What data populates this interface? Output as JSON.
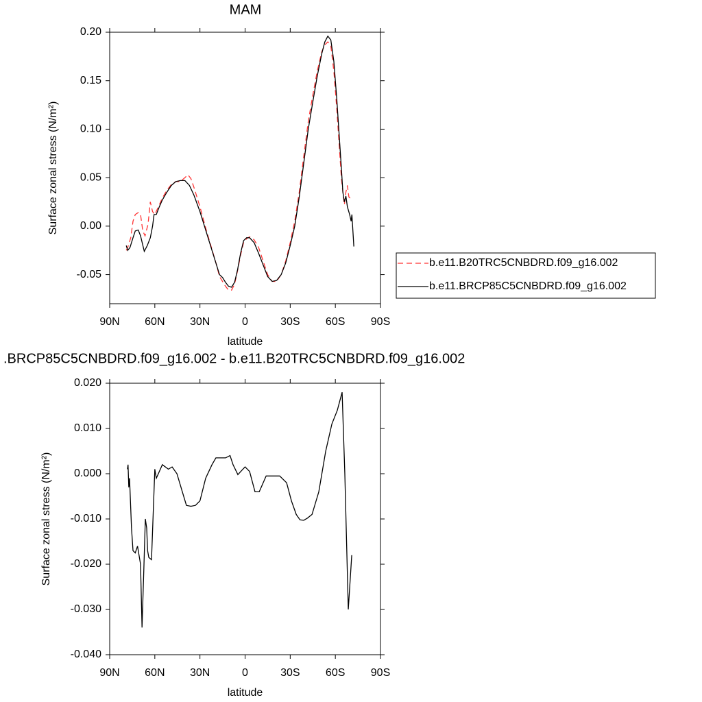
{
  "chart_data": [
    {
      "type": "line",
      "title": "MAM",
      "xlabel": "latitude",
      "ylabel": "Surface zonal stress (N/m²)",
      "xlim": [
        90,
        -90
      ],
      "xticks": [
        {
          "value": 90,
          "label": "90N"
        },
        {
          "value": 60,
          "label": "60N"
        },
        {
          "value": 30,
          "label": "30N"
        },
        0,
        {
          "value": -30,
          "label": "30S"
        },
        {
          "value": -60,
          "label": "60S"
        },
        {
          "value": -90,
          "label": "90S"
        }
      ],
      "ylim": [
        -0.08,
        0.2
      ],
      "yticks": [
        {
          "value": -0.05,
          "label": "-0.05"
        },
        {
          "value": 0,
          "label": "0.00"
        },
        {
          "value": 0.05,
          "label": "0.05"
        },
        {
          "value": 0.1,
          "label": "0.10"
        },
        {
          "value": 0.15,
          "label": "0.15"
        },
        {
          "value": 0.2,
          "label": "0.20"
        }
      ],
      "legend": "right",
      "series": [
        {
          "name": "b.e11.B20TRC5CNBDRD.f09_g16.002",
          "color": "#ff3333",
          "linestyle": "dashed",
          "x": [
            79,
            78,
            76,
            74.5,
            73,
            71,
            69.5,
            68,
            66.5,
            64.5,
            63,
            61.5,
            60,
            57,
            55,
            52,
            49,
            46,
            43,
            40,
            38,
            36,
            34,
            30,
            26,
            22,
            19,
            17,
            15,
            13,
            11,
            9,
            7,
            5,
            3,
            1,
            -1,
            -3,
            -6,
            -9,
            -12,
            -15,
            -18,
            -21,
            -24,
            -27,
            -30,
            -33,
            -36,
            -39,
            -42,
            -45,
            -48,
            -51,
            -53,
            -55,
            -57,
            -59,
            -61,
            -62.5,
            -64,
            -65,
            -66,
            -67,
            -68,
            -69,
            -70.5
          ],
          "values": [
            -0.025,
            -0.022,
            -0.012,
            0.005,
            0.012,
            0.014,
            0.012,
            -0.005,
            -0.01,
            0.002,
            0.025,
            0.015,
            0.012,
            0.022,
            0.029,
            0.037,
            0.043,
            0.046,
            0.046,
            0.05,
            0.053,
            0.049,
            0.04,
            0.02,
            -0.003,
            -0.024,
            -0.04,
            -0.052,
            -0.057,
            -0.062,
            -0.066,
            -0.066,
            -0.06,
            -0.046,
            -0.03,
            -0.017,
            -0.013,
            -0.011,
            -0.014,
            -0.022,
            -0.036,
            -0.05,
            -0.057,
            -0.057,
            -0.05,
            -0.036,
            -0.017,
            0.005,
            0.035,
            0.072,
            0.108,
            0.135,
            0.16,
            0.18,
            0.187,
            0.19,
            0.186,
            0.16,
            0.12,
            0.085,
            0.05,
            0.035,
            0.022,
            0.035,
            0.042,
            0.03,
            0.028
          ]
        },
        {
          "name": "b.e11.BRCP85C5CNBDRD.f09_g16.002",
          "color": "#000000",
          "linestyle": "solid",
          "x": [
            79,
            78,
            76.5,
            74.5,
            73,
            71,
            69.5,
            67,
            65,
            63,
            61.5,
            60.5,
            59,
            57,
            55,
            52,
            49,
            46,
            43,
            40,
            37,
            34,
            30,
            26,
            22,
            19,
            17,
            15,
            13,
            11,
            9,
            7,
            5,
            3,
            1,
            -1,
            -3,
            -6,
            -9,
            -12,
            -15,
            -18,
            -21,
            -24,
            -27,
            -30,
            -33,
            -36,
            -39,
            -42,
            -45,
            -48,
            -51,
            -53,
            -55,
            -57,
            -59,
            -61,
            -62.5,
            -64,
            -65,
            -66,
            -67,
            -68,
            -69.5,
            -70.5,
            -71,
            -72.3
          ],
          "values": [
            -0.02,
            -0.025,
            -0.022,
            -0.012,
            -0.005,
            -0.004,
            -0.01,
            -0.026,
            -0.02,
            -0.012,
            0.0,
            0.012,
            0.012,
            0.02,
            0.027,
            0.035,
            0.042,
            0.046,
            0.047,
            0.047,
            0.042,
            0.032,
            0.015,
            -0.005,
            -0.025,
            -0.04,
            -0.05,
            -0.053,
            -0.058,
            -0.062,
            -0.063,
            -0.058,
            -0.045,
            -0.028,
            -0.015,
            -0.012,
            -0.012,
            -0.017,
            -0.028,
            -0.04,
            -0.052,
            -0.057,
            -0.056,
            -0.05,
            -0.038,
            -0.02,
            0.0,
            0.03,
            0.065,
            0.1,
            0.128,
            0.155,
            0.178,
            0.19,
            0.196,
            0.192,
            0.17,
            0.13,
            0.095,
            0.06,
            0.035,
            0.025,
            0.031,
            0.02,
            0.012,
            0.005,
            0.012,
            -0.021
          ]
        }
      ]
    },
    {
      "type": "line",
      "title": ".BRCP85C5CNBDRD.f09_g16.002 - b.e11.B20TRC5CNBDRD.f09_g16.002",
      "xlabel": "latitude",
      "ylabel": "Surface zonal stress (N/m²)",
      "xlim": [
        90,
        -90
      ],
      "xticks": [
        {
          "value": 90,
          "label": "90N"
        },
        {
          "value": 60,
          "label": "60N"
        },
        {
          "value": 30,
          "label": "30N"
        },
        0,
        {
          "value": -30,
          "label": "30S"
        },
        {
          "value": -60,
          "label": "60S"
        },
        {
          "value": -90,
          "label": "90S"
        }
      ],
      "ylim": [
        -0.04,
        0.02
      ],
      "yticks": [
        {
          "value": -0.04,
          "label": "-0.040"
        },
        {
          "value": -0.03,
          "label": "-0.030"
        },
        {
          "value": -0.02,
          "label": "-0.020"
        },
        {
          "value": -0.01,
          "label": "-0.010"
        },
        {
          "value": 0,
          "label": "0.000"
        },
        {
          "value": 0.01,
          "label": "0.010"
        },
        {
          "value": 0.02,
          "label": "0.020"
        }
      ],
      "series": [
        {
          "color": "#000000",
          "linestyle": "solid",
          "x": [
            78.2,
            77.8,
            77.3,
            76.8,
            75.5,
            74.5,
            73,
            71.5,
            69.5,
            68.5,
            67.2,
            66.3,
            65.4,
            64.8,
            64,
            62.2,
            60,
            59,
            55,
            51,
            48.5,
            45.3,
            41.7,
            39,
            36,
            33,
            30,
            26.2,
            22,
            19.4,
            16,
            13,
            10,
            8,
            4.8,
            2,
            0,
            -3,
            -6.6,
            -9.4,
            -14,
            -23,
            -27.6,
            -30.8,
            -34,
            -36.5,
            -39,
            -41.5,
            -44.5,
            -49,
            -53.6,
            -57.7,
            -61.3,
            -64.5,
            -66.3,
            -68.6,
            -70.9
          ],
          "values": [
            0.001,
            0.002,
            -0.003,
            -0.001,
            -0.012,
            -0.017,
            -0.0175,
            -0.016,
            -0.02,
            -0.034,
            -0.02,
            -0.01,
            -0.012,
            -0.017,
            -0.0185,
            -0.019,
            0.001,
            -0.001,
            0.002,
            0.001,
            0.0015,
            0.0,
            -0.004,
            -0.007,
            -0.0072,
            -0.007,
            -0.006,
            -0.001,
            0.002,
            0.0035,
            0.0035,
            0.0035,
            0.004,
            0.002,
            -0.0002,
            0.0008,
            0.0015,
            0.0005,
            -0.004,
            -0.004,
            -0.0005,
            -0.0005,
            -0.002,
            -0.006,
            -0.009,
            -0.0102,
            -0.0103,
            -0.0098,
            -0.009,
            -0.004,
            0.005,
            0.011,
            0.014,
            0.018,
            0.0,
            -0.03,
            -0.018
          ]
        }
      ]
    }
  ]
}
